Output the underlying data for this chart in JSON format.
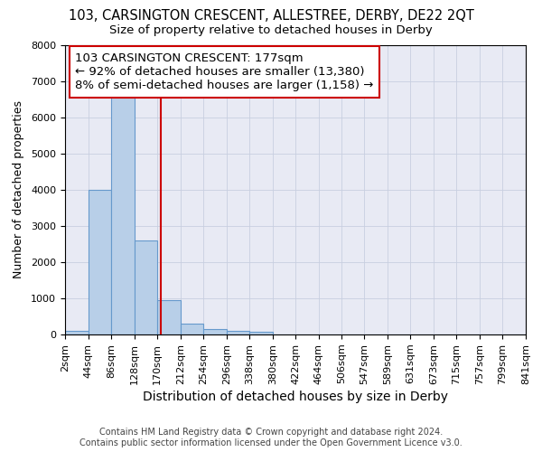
{
  "title": "103, CARSINGTON CRESCENT, ALLESTREE, DERBY, DE22 2QT",
  "subtitle": "Size of property relative to detached houses in Derby",
  "xlabel": "Distribution of detached houses by size in Derby",
  "ylabel": "Number of detached properties",
  "footer_line1": "Contains HM Land Registry data © Crown copyright and database right 2024.",
  "footer_line2": "Contains public sector information licensed under the Open Government Licence v3.0.",
  "bin_edges": [
    2,
    44,
    86,
    128,
    170,
    212,
    254,
    296,
    338,
    380,
    422,
    464,
    506,
    547,
    589,
    631,
    673,
    715,
    757,
    799,
    841
  ],
  "bar_heights": [
    100,
    4000,
    6600,
    2600,
    950,
    310,
    140,
    100,
    80,
    0,
    0,
    0,
    0,
    0,
    0,
    0,
    0,
    0,
    0,
    0
  ],
  "bar_color": "#b8cfe8",
  "bar_edgecolor": "#6699cc",
  "grid_color": "#c8cfe0",
  "background_color": "#e8eaf4",
  "vline_x": 177,
  "vline_color": "#cc0000",
  "annotation_text": "103 CARSINGTON CRESCENT: 177sqm\n← 92% of detached houses are smaller (13,380)\n8% of semi-detached houses are larger (1,158) →",
  "annotation_box_color": "#cc0000",
  "ylim": [
    0,
    8000
  ],
  "yticks": [
    0,
    1000,
    2000,
    3000,
    4000,
    5000,
    6000,
    7000,
    8000
  ],
  "title_fontsize": 10.5,
  "subtitle_fontsize": 9.5,
  "xlabel_fontsize": 10,
  "ylabel_fontsize": 9,
  "tick_fontsize": 8,
  "annotation_fontsize": 9.5,
  "footer_fontsize": 7
}
